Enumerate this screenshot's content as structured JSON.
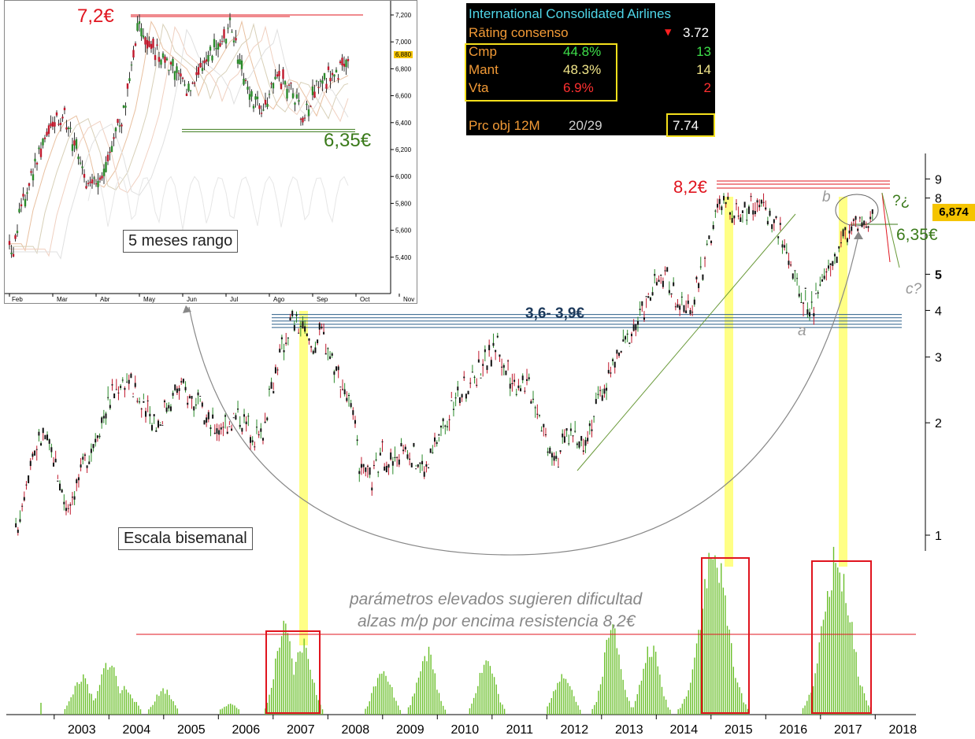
{
  "colors": {
    "price_up": "#2a8a2a",
    "price_down": "#c0182c",
    "candle_body": "#111111",
    "resistance": "#e0141e",
    "support_green": "#3a7a1a",
    "support_band": "#2b5f8a",
    "highlight": "#ffff66",
    "volume": "#6abf2a",
    "box_red": "#e0141e",
    "rating_accent": "#f5e01c"
  },
  "rating_panel": {
    "title": "International Consolidated Airlines",
    "consensus_label": "Rāting consenso",
    "consensus_icon": "triangle-down-icon",
    "consensus_value": "3.72",
    "rows": [
      {
        "label": "Cmp",
        "pct": "44.8%",
        "count": "13",
        "color": "#3ee04a"
      },
      {
        "label": "Mant",
        "pct": "48.3%",
        "count": "14",
        "color": "#f2e68a"
      },
      {
        "label": "Vta",
        "pct": "6.9%",
        "count": "2",
        "color": "#ff3030"
      }
    ],
    "target_label": "Prc obj 12M",
    "target_ratio": "20/29",
    "target_value": "7.74"
  },
  "inset": {
    "resistance_label": "7,2€",
    "support_label": "6,35€",
    "box_label": "5 meses rango",
    "current_price_tag": "6,880",
    "chart_data": {
      "type": "candlestick",
      "x_tick_labels": [
        "Feb",
        "Mar",
        "Abr",
        "May",
        "Jun",
        "Jul",
        "Ago",
        "Sep",
        "Oct",
        "Nov"
      ],
      "y_tick_labels": [
        "7,200",
        "7,000",
        "6,800",
        "6,600",
        "6,400",
        "6,200",
        "6,000",
        "5,800",
        "5,600",
        "5,400"
      ],
      "y_ticks": [
        7.2,
        7.0,
        6.8,
        6.6,
        6.4,
        6.2,
        6.0,
        5.8,
        5.6,
        5.4
      ],
      "ylim": [
        5.28,
        7.3
      ],
      "resistance": 7.2,
      "support": 6.35,
      "path": [
        [
          0,
          5.5
        ],
        [
          1,
          5.45
        ],
        [
          3,
          5.75
        ],
        [
          6,
          6.05
        ],
        [
          9,
          6.3
        ],
        [
          11,
          6.4
        ],
        [
          14,
          6.45
        ],
        [
          17,
          6.2
        ],
        [
          19,
          5.95
        ],
        [
          21,
          5.92
        ],
        [
          24,
          6.05
        ],
        [
          27,
          6.3
        ],
        [
          29,
          6.5
        ],
        [
          31,
          6.8
        ],
        [
          33,
          7.15
        ],
        [
          34,
          7.1
        ],
        [
          36,
          6.95
        ],
        [
          38,
          6.9
        ],
        [
          40,
          6.85
        ],
        [
          42,
          6.8
        ],
        [
          44,
          6.7
        ],
        [
          45,
          6.6
        ],
        [
          47,
          6.75
        ],
        [
          49,
          6.8
        ],
        [
          51,
          6.9
        ],
        [
          53,
          7.0
        ],
        [
          55,
          7.05
        ],
        [
          56,
          7.15
        ],
        [
          58,
          6.9
        ],
        [
          60,
          6.7
        ],
        [
          62,
          6.55
        ],
        [
          64,
          6.5
        ],
        [
          66,
          6.6
        ],
        [
          68,
          6.72
        ],
        [
          70,
          6.7
        ],
        [
          72,
          6.6
        ],
        [
          74,
          6.5
        ],
        [
          75,
          6.45
        ],
        [
          77,
          6.62
        ],
        [
          79,
          6.7
        ],
        [
          81,
          6.72
        ],
        [
          83,
          6.75
        ],
        [
          85,
          6.82
        ],
        [
          86,
          6.88
        ]
      ]
    }
  },
  "main": {
    "chart_data": {
      "type": "candlestick",
      "x_tick_labels": [
        "2003",
        "2004",
        "2005",
        "2006",
        "2007",
        "2008",
        "2009",
        "2010",
        "2011",
        "2012",
        "2013",
        "2014",
        "2015",
        "2016",
        "2017",
        "2018"
      ],
      "y_scale": "log",
      "y_tick_labels": [
        "9",
        "8",
        "5",
        "4",
        "3",
        "2",
        "1"
      ],
      "y_ticks": [
        9,
        8,
        5,
        4,
        3,
        2,
        1
      ],
      "ylim": [
        0.95,
        10
      ],
      "path": [
        [
          2002.3,
          1.0
        ],
        [
          2002.6,
          1.65
        ],
        [
          2002.8,
          1.85
        ],
        [
          2003.0,
          1.6
        ],
        [
          2003.2,
          1.2
        ],
        [
          2003.4,
          1.35
        ],
        [
          2003.7,
          1.75
        ],
        [
          2004.0,
          2.3
        ],
        [
          2004.2,
          2.55
        ],
        [
          2004.35,
          2.65
        ],
        [
          2004.6,
          2.2
        ],
        [
          2004.9,
          2.0
        ],
        [
          2005.1,
          2.3
        ],
        [
          2005.3,
          2.5
        ],
        [
          2005.6,
          2.25
        ],
        [
          2005.8,
          2.0
        ],
        [
          2006.0,
          1.95
        ],
        [
          2006.2,
          2.05
        ],
        [
          2006.4,
          2.1
        ],
        [
          2006.6,
          1.9
        ],
        [
          2006.8,
          1.85
        ],
        [
          2007.0,
          2.6
        ],
        [
          2007.2,
          3.3
        ],
        [
          2007.35,
          3.8
        ],
        [
          2007.5,
          3.6
        ],
        [
          2007.7,
          3.2
        ],
        [
          2007.9,
          3.5
        ],
        [
          2008.1,
          2.9
        ],
        [
          2008.3,
          2.5
        ],
        [
          2008.5,
          1.9
        ],
        [
          2008.6,
          1.45
        ],
        [
          2008.8,
          1.4
        ],
        [
          2009.0,
          1.65
        ],
        [
          2009.2,
          1.55
        ],
        [
          2009.4,
          1.75
        ],
        [
          2009.6,
          1.6
        ],
        [
          2009.8,
          1.5
        ],
        [
          2010.0,
          1.8
        ],
        [
          2010.2,
          2.1
        ],
        [
          2010.4,
          2.4
        ],
        [
          2010.6,
          2.55
        ],
        [
          2010.8,
          2.9
        ],
        [
          2011.0,
          3.05
        ],
        [
          2011.1,
          3.35
        ],
        [
          2011.2,
          2.8
        ],
        [
          2011.4,
          2.6
        ],
        [
          2011.6,
          2.6
        ],
        [
          2011.8,
          2.3
        ],
        [
          2012.0,
          1.8
        ],
        [
          2012.2,
          1.65
        ],
        [
          2012.4,
          1.9
        ],
        [
          2012.6,
          1.75
        ],
        [
          2012.8,
          2.0
        ],
        [
          2013.0,
          2.4
        ],
        [
          2013.2,
          2.8
        ],
        [
          2013.4,
          3.2
        ],
        [
          2013.6,
          3.6
        ],
        [
          2013.8,
          4.1
        ],
        [
          2014.0,
          4.7
        ],
        [
          2014.2,
          4.9
        ],
        [
          2014.4,
          4.2
        ],
        [
          2014.55,
          3.85
        ],
        [
          2014.7,
          4.4
        ],
        [
          2014.9,
          5.5
        ],
        [
          2015.0,
          6.4
        ],
        [
          2015.15,
          7.6
        ],
        [
          2015.3,
          7.7
        ],
        [
          2015.5,
          7.3
        ],
        [
          2015.7,
          7.6
        ],
        [
          2015.85,
          7.9
        ],
        [
          2016.0,
          7.4
        ],
        [
          2016.2,
          6.8
        ],
        [
          2016.3,
          6.2
        ],
        [
          2016.45,
          5.4
        ],
        [
          2016.55,
          4.6
        ],
        [
          2016.7,
          4.3
        ],
        [
          2016.85,
          4.0
        ],
        [
          2017.0,
          4.6
        ],
        [
          2017.2,
          5.3
        ],
        [
          2017.4,
          6.2
        ],
        [
          2017.55,
          6.8
        ],
        [
          2017.7,
          6.7
        ],
        [
          2017.85,
          6.6
        ],
        [
          2017.95,
          6.874
        ]
      ],
      "support_zone": [
        3.6,
        3.9
      ],
      "resistance": 8.2
    },
    "volume_data": {
      "type": "bar",
      "peaks": [
        [
          2003.5,
          0.22
        ],
        [
          2004.0,
          0.32
        ],
        [
          2004.3,
          0.16
        ],
        [
          2005.0,
          0.15
        ],
        [
          2006.2,
          0.06
        ],
        [
          2007.2,
          0.5
        ],
        [
          2007.55,
          0.42
        ],
        [
          2009.0,
          0.28
        ],
        [
          2009.8,
          0.38
        ],
        [
          2010.9,
          0.32
        ],
        [
          2012.3,
          0.25
        ],
        [
          2013.2,
          0.52
        ],
        [
          2013.9,
          0.4
        ],
        [
          2015.05,
          0.95
        ],
        [
          2017.3,
          0.92
        ]
      ],
      "threshold": 0.52
    },
    "labels": {
      "resistance_label": "8,2€",
      "support_label": "6,35€",
      "zone_label": "3,6- 3,9€",
      "question_label": "?¿",
      "wave_b": "b",
      "wave_a": "a",
      "wave_c": "c?",
      "current_price": "6,874",
      "scale_label": "Escala bisemanal",
      "note_line1": "parámetros elevados sugieren dificultad",
      "note_line2": "alzas m/p por encima resistencia 8,2€"
    }
  }
}
